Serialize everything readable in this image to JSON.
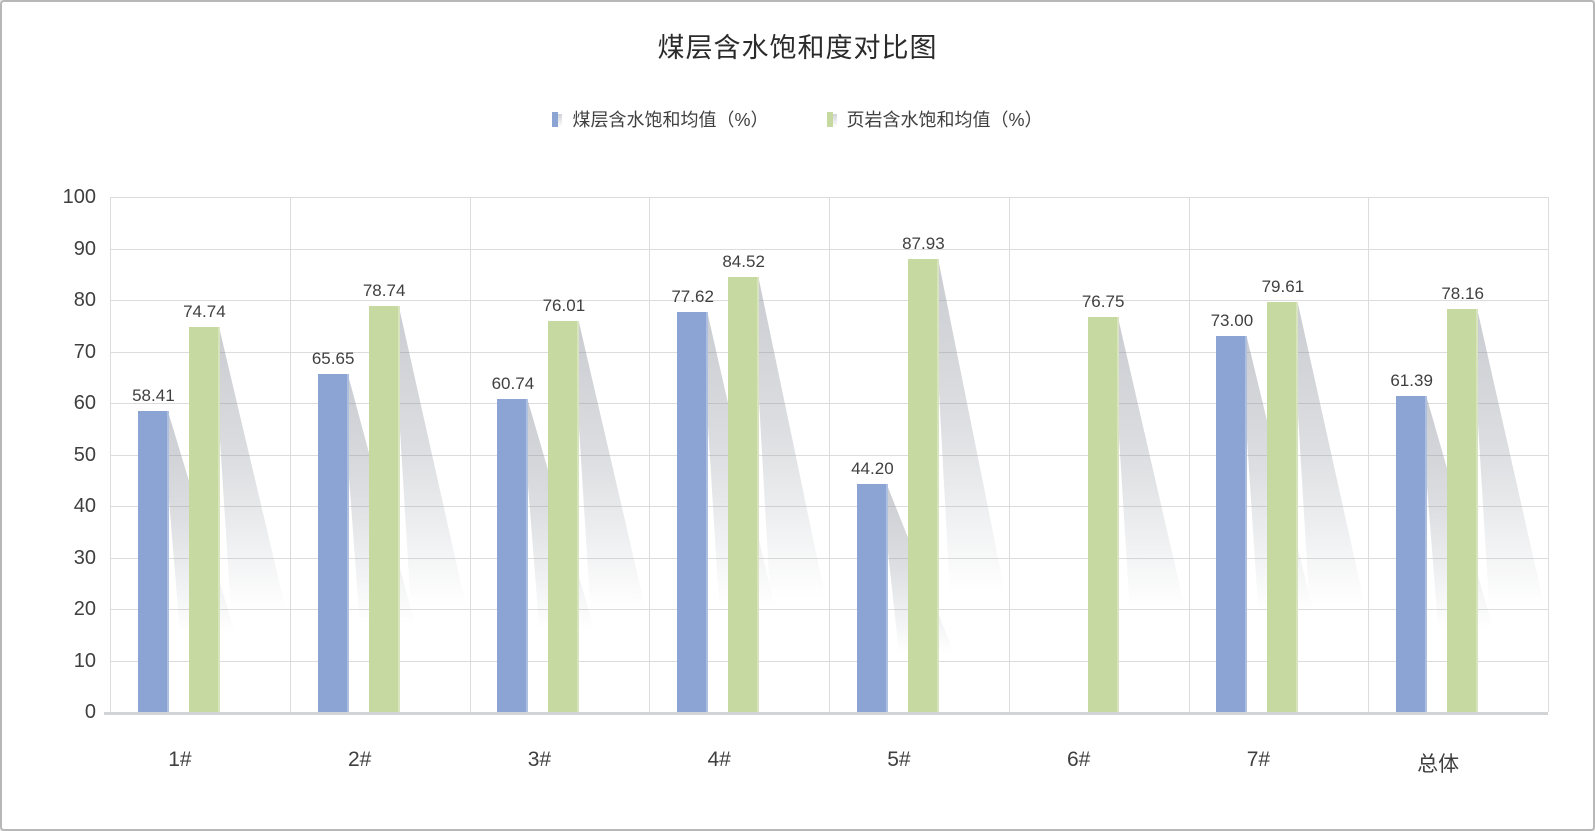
{
  "chart_data": {
    "type": "bar",
    "title": "煤层含水饱和度对比图",
    "categories": [
      "1#",
      "2#",
      "3#",
      "4#",
      "5#",
      "6#",
      "7#",
      "总体"
    ],
    "series": [
      {
        "name": "煤层含水饱和均值（%）",
        "color": "#8BA4D3",
        "values": [
          58.41,
          65.65,
          60.74,
          77.62,
          44.2,
          null,
          73.0,
          61.39
        ]
      },
      {
        "name": "页岩含水饱和均值（%）",
        "color": "#C6D9A1",
        "values": [
          74.74,
          78.74,
          76.01,
          84.52,
          87.93,
          76.75,
          79.61,
          78.16
        ]
      }
    ],
    "xlabel": "",
    "ylabel": "",
    "ylim": [
      0,
      100
    ],
    "yticks": [
      0,
      10,
      20,
      30,
      40,
      50,
      60,
      70,
      80,
      90,
      100
    ],
    "grid": true,
    "legend_position": "top",
    "value_label_decimals": 2,
    "bar_shadow_style": "perspective-lower-right"
  }
}
